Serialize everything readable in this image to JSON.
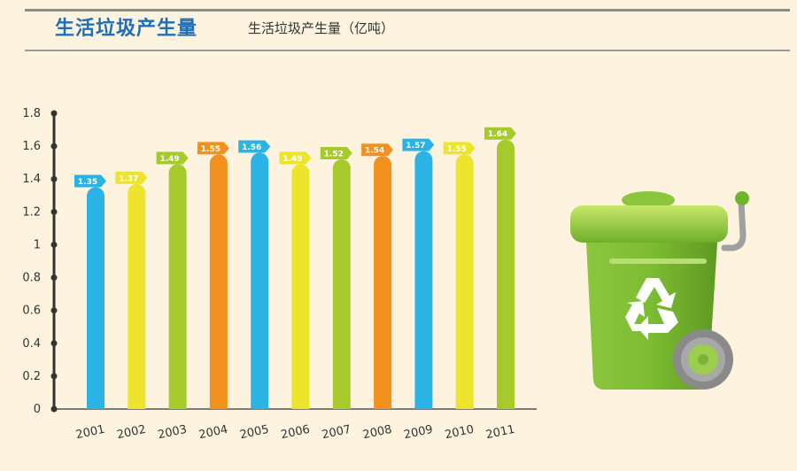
{
  "header": {
    "title": "生活垃圾产生量",
    "subtitle": "生活垃圾产生量（亿吨）"
  },
  "chart_data": {
    "type": "bar",
    "title": "生活垃圾产生量",
    "ylabel": "",
    "xlabel": "",
    "ylim": [
      0,
      1.8
    ],
    "yticks": [
      "0",
      "0.2",
      "0.4",
      "0.6",
      "0.8",
      "1",
      "1.2",
      "1.4",
      "1.6",
      "1.8"
    ],
    "categories": [
      "2001",
      "2002",
      "2003",
      "2004",
      "2005",
      "2006",
      "2007",
      "2008",
      "2009",
      "2010",
      "2011"
    ],
    "values": [
      1.35,
      1.37,
      1.49,
      1.55,
      1.56,
      1.49,
      1.52,
      1.54,
      1.57,
      1.55,
      1.64
    ],
    "data_labels": [
      "1.35",
      "1.37",
      "1.49",
      "1.55",
      "1.56",
      "1.49",
      "1.52",
      "1.54",
      "1.57",
      "1.55",
      "1.64"
    ],
    "bar_colors": [
      "#2bb3e6",
      "#ede52c",
      "#a6c92c",
      "#f1921f",
      "#2bb3e6",
      "#ede52c",
      "#a6c92c",
      "#f1921f",
      "#2bb3e6",
      "#ede52c",
      "#a6c92c"
    ],
    "grid": false,
    "legend": "none"
  },
  "illustration": {
    "icon": "recycling-bin-icon"
  }
}
